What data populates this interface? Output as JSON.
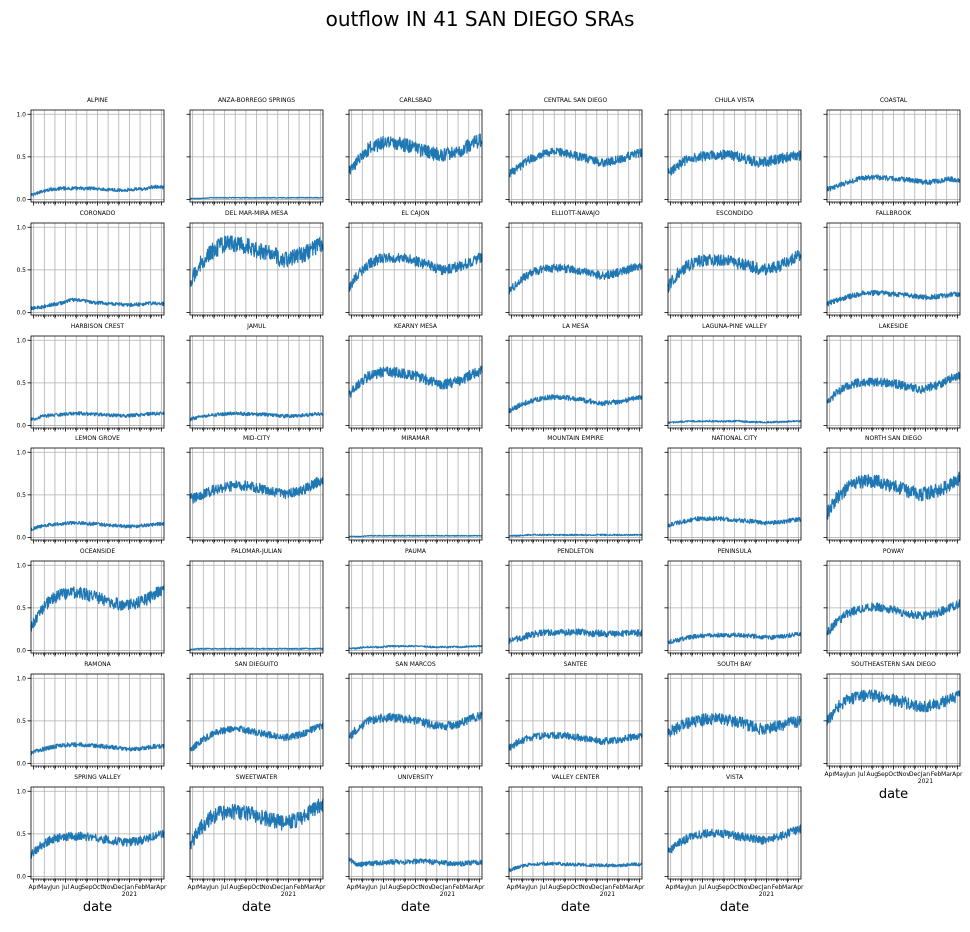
{
  "title": "outflow IN 41 SAN DIEGO SRAs",
  "chart_data": {
    "type": "line",
    "layout": {
      "rows": 7,
      "cols": 6
    },
    "shared_axes": true,
    "series_color": "#1f77b4",
    "grid": true,
    "xlabel": "date",
    "ylim": [
      -0.03,
      1.05
    ],
    "y_ticks": [
      0.0,
      0.5,
      1.0
    ],
    "y_tick_labels": [
      "0.0",
      "0.5",
      "1.0"
    ],
    "x_range": [
      "2020-04-01",
      "2021-04-15"
    ],
    "x_tick_labels": [
      "Apr",
      "May",
      "Jun",
      "Jul",
      "Aug",
      "Sep",
      "Oct",
      "Nov",
      "Dec",
      "Jan",
      "Feb",
      "Mar",
      "Apr"
    ],
    "x_year_label": "2021",
    "x_profile": [
      0,
      0.07,
      0.15,
      0.23,
      0.3,
      0.38,
      0.46,
      0.54,
      0.62,
      0.7,
      0.77,
      0.85,
      0.92,
      1.0
    ],
    "panels": [
      {
        "name": "ALPINE",
        "profile": [
          0.05,
          0.09,
          0.12,
          0.13,
          0.13,
          0.13,
          0.13,
          0.12,
          0.11,
          0.11,
          0.12,
          0.12,
          0.15,
          0.14
        ],
        "noise": 0.02
      },
      {
        "name": "ANZA-BORREGO SPRINGS",
        "profile": [
          0.01,
          0.01,
          0.02,
          0.02,
          0.02,
          0.02,
          0.02,
          0.02,
          0.02,
          0.02,
          0.02,
          0.02,
          0.02,
          0.02
        ],
        "noise": 0.005
      },
      {
        "name": "CARLSBAD",
        "profile": [
          0.3,
          0.48,
          0.6,
          0.65,
          0.67,
          0.66,
          0.62,
          0.58,
          0.54,
          0.52,
          0.55,
          0.58,
          0.65,
          0.7
        ],
        "noise": 0.08
      },
      {
        "name": "CENTRAL SAN DIEGO",
        "profile": [
          0.3,
          0.37,
          0.47,
          0.52,
          0.55,
          0.56,
          0.53,
          0.5,
          0.46,
          0.43,
          0.45,
          0.48,
          0.52,
          0.55
        ],
        "noise": 0.05
      },
      {
        "name": "CHULA VISTA",
        "profile": [
          0.3,
          0.4,
          0.47,
          0.5,
          0.52,
          0.53,
          0.52,
          0.5,
          0.46,
          0.43,
          0.45,
          0.48,
          0.5,
          0.52
        ],
        "noise": 0.06
      },
      {
        "name": "COASTAL",
        "profile": [
          0.12,
          0.15,
          0.2,
          0.24,
          0.26,
          0.26,
          0.25,
          0.24,
          0.23,
          0.21,
          0.2,
          0.22,
          0.24,
          0.22
        ],
        "noise": 0.03
      },
      {
        "name": "CORONADO",
        "profile": [
          0.05,
          0.06,
          0.09,
          0.11,
          0.15,
          0.14,
          0.12,
          0.11,
          0.1,
          0.09,
          0.09,
          0.1,
          0.11,
          0.1
        ],
        "noise": 0.02
      },
      {
        "name": "DEL MAR-MIRA MESA",
        "profile": [
          0.35,
          0.55,
          0.7,
          0.78,
          0.82,
          0.8,
          0.76,
          0.72,
          0.68,
          0.62,
          0.65,
          0.68,
          0.75,
          0.8
        ],
        "noise": 0.1
      },
      {
        "name": "EL CAJON",
        "profile": [
          0.3,
          0.45,
          0.57,
          0.63,
          0.65,
          0.64,
          0.62,
          0.58,
          0.54,
          0.5,
          0.52,
          0.55,
          0.6,
          0.65
        ],
        "noise": 0.06
      },
      {
        "name": "ELLIOTT-NAVAJO",
        "profile": [
          0.25,
          0.36,
          0.45,
          0.5,
          0.52,
          0.52,
          0.51,
          0.49,
          0.46,
          0.43,
          0.45,
          0.48,
          0.52,
          0.55
        ],
        "noise": 0.05
      },
      {
        "name": "ESCONDIDO",
        "profile": [
          0.3,
          0.45,
          0.55,
          0.6,
          0.62,
          0.61,
          0.6,
          0.57,
          0.54,
          0.5,
          0.52,
          0.55,
          0.62,
          0.68
        ],
        "noise": 0.07
      },
      {
        "name": "FALLBROOK",
        "profile": [
          0.1,
          0.14,
          0.18,
          0.21,
          0.23,
          0.23,
          0.22,
          0.21,
          0.2,
          0.18,
          0.18,
          0.19,
          0.21,
          0.22
        ],
        "noise": 0.03
      },
      {
        "name": "HARBISON CREST",
        "profile": [
          0.07,
          0.1,
          0.12,
          0.13,
          0.14,
          0.14,
          0.13,
          0.13,
          0.12,
          0.11,
          0.12,
          0.13,
          0.14,
          0.14
        ],
        "noise": 0.02
      },
      {
        "name": "JAMUL",
        "profile": [
          0.07,
          0.1,
          0.12,
          0.13,
          0.14,
          0.14,
          0.13,
          0.13,
          0.12,
          0.11,
          0.11,
          0.12,
          0.13,
          0.14
        ],
        "noise": 0.02
      },
      {
        "name": "KEARNY MESA",
        "profile": [
          0.35,
          0.48,
          0.58,
          0.62,
          0.63,
          0.62,
          0.6,
          0.56,
          0.52,
          0.48,
          0.5,
          0.53,
          0.6,
          0.64
        ],
        "noise": 0.06
      },
      {
        "name": "LA MESA",
        "profile": [
          0.17,
          0.23,
          0.28,
          0.31,
          0.33,
          0.33,
          0.32,
          0.3,
          0.28,
          0.26,
          0.27,
          0.28,
          0.31,
          0.33
        ],
        "noise": 0.03
      },
      {
        "name": "LAGUNA-PINE VALLEY",
        "profile": [
          0.03,
          0.04,
          0.05,
          0.05,
          0.05,
          0.05,
          0.05,
          0.05,
          0.04,
          0.04,
          0.04,
          0.04,
          0.05,
          0.05
        ],
        "noise": 0.01
      },
      {
        "name": "LAKESIDE",
        "profile": [
          0.28,
          0.38,
          0.46,
          0.5,
          0.51,
          0.51,
          0.5,
          0.48,
          0.45,
          0.42,
          0.45,
          0.48,
          0.55,
          0.58
        ],
        "noise": 0.05
      },
      {
        "name": "LEMON GROVE",
        "profile": [
          0.1,
          0.13,
          0.15,
          0.16,
          0.17,
          0.17,
          0.16,
          0.15,
          0.14,
          0.13,
          0.13,
          0.14,
          0.15,
          0.16
        ],
        "noise": 0.02
      },
      {
        "name": "MID-CITY",
        "profile": [
          0.45,
          0.48,
          0.54,
          0.58,
          0.6,
          0.61,
          0.6,
          0.57,
          0.54,
          0.5,
          0.52,
          0.55,
          0.62,
          0.68
        ],
        "noise": 0.06
      },
      {
        "name": "MIRAMAR",
        "profile": [
          0.01,
          0.01,
          0.02,
          0.02,
          0.02,
          0.02,
          0.02,
          0.02,
          0.02,
          0.02,
          0.02,
          0.02,
          0.02,
          0.02
        ],
        "noise": 0.005
      },
      {
        "name": "MOUNTAIN EMPIRE",
        "profile": [
          0.02,
          0.02,
          0.03,
          0.03,
          0.03,
          0.03,
          0.03,
          0.03,
          0.03,
          0.03,
          0.03,
          0.03,
          0.03,
          0.03
        ],
        "noise": 0.008
      },
      {
        "name": "NATIONAL CITY",
        "profile": [
          0.14,
          0.17,
          0.2,
          0.22,
          0.22,
          0.22,
          0.21,
          0.2,
          0.19,
          0.17,
          0.17,
          0.18,
          0.2,
          0.21
        ],
        "noise": 0.025
      },
      {
        "name": "NORTH SAN DIEGO",
        "profile": [
          0.28,
          0.45,
          0.58,
          0.64,
          0.67,
          0.66,
          0.62,
          0.58,
          0.54,
          0.5,
          0.53,
          0.56,
          0.62,
          0.7
        ],
        "noise": 0.08
      },
      {
        "name": "OCEANSIDE",
        "profile": [
          0.28,
          0.45,
          0.6,
          0.66,
          0.68,
          0.67,
          0.64,
          0.6,
          0.56,
          0.53,
          0.55,
          0.58,
          0.65,
          0.72
        ],
        "noise": 0.07
      },
      {
        "name": "PALOMAR-JULIAN",
        "profile": [
          0.01,
          0.02,
          0.02,
          0.02,
          0.02,
          0.02,
          0.02,
          0.02,
          0.02,
          0.02,
          0.02,
          0.02,
          0.02,
          0.02
        ],
        "noise": 0.007
      },
      {
        "name": "PAUMA",
        "profile": [
          0.02,
          0.03,
          0.04,
          0.04,
          0.05,
          0.05,
          0.05,
          0.05,
          0.04,
          0.04,
          0.04,
          0.04,
          0.05,
          0.05
        ],
        "noise": 0.01
      },
      {
        "name": "PENDLETON",
        "profile": [
          0.1,
          0.14,
          0.18,
          0.2,
          0.21,
          0.21,
          0.21,
          0.22,
          0.2,
          0.2,
          0.19,
          0.2,
          0.21,
          0.2
        ],
        "noise": 0.04
      },
      {
        "name": "PENINSULA",
        "profile": [
          0.1,
          0.12,
          0.15,
          0.17,
          0.18,
          0.18,
          0.18,
          0.18,
          0.17,
          0.16,
          0.15,
          0.16,
          0.18,
          0.2
        ],
        "noise": 0.025
      },
      {
        "name": "POWAY",
        "profile": [
          0.2,
          0.33,
          0.43,
          0.48,
          0.51,
          0.51,
          0.49,
          0.46,
          0.43,
          0.4,
          0.42,
          0.45,
          0.5,
          0.55
        ],
        "noise": 0.05
      },
      {
        "name": "RAMONA",
        "profile": [
          0.12,
          0.16,
          0.19,
          0.21,
          0.22,
          0.22,
          0.21,
          0.2,
          0.19,
          0.17,
          0.17,
          0.18,
          0.2,
          0.2
        ],
        "noise": 0.025
      },
      {
        "name": "SAN DIEGUITO",
        "profile": [
          0.15,
          0.25,
          0.33,
          0.38,
          0.4,
          0.4,
          0.38,
          0.35,
          0.33,
          0.3,
          0.32,
          0.35,
          0.4,
          0.45
        ],
        "noise": 0.04
      },
      {
        "name": "SAN MARCOS",
        "profile": [
          0.3,
          0.42,
          0.5,
          0.53,
          0.54,
          0.53,
          0.52,
          0.49,
          0.46,
          0.43,
          0.45,
          0.48,
          0.53,
          0.56
        ],
        "noise": 0.05
      },
      {
        "name": "SANTEE",
        "profile": [
          0.18,
          0.25,
          0.3,
          0.32,
          0.33,
          0.33,
          0.32,
          0.3,
          0.28,
          0.26,
          0.27,
          0.28,
          0.31,
          0.33
        ],
        "noise": 0.04
      },
      {
        "name": "SOUTH BAY",
        "profile": [
          0.35,
          0.42,
          0.48,
          0.5,
          0.52,
          0.52,
          0.51,
          0.48,
          0.44,
          0.4,
          0.42,
          0.44,
          0.48,
          0.5
        ],
        "noise": 0.07
      },
      {
        "name": "SOUTHEASTERN SAN DIEGO",
        "profile": [
          0.5,
          0.65,
          0.74,
          0.78,
          0.8,
          0.79,
          0.76,
          0.73,
          0.7,
          0.66,
          0.68,
          0.7,
          0.76,
          0.8
        ],
        "noise": 0.07
      },
      {
        "name": "SPRING VALLEY",
        "profile": [
          0.25,
          0.36,
          0.43,
          0.46,
          0.47,
          0.47,
          0.46,
          0.44,
          0.42,
          0.4,
          0.41,
          0.43,
          0.47,
          0.5
        ],
        "noise": 0.05
      },
      {
        "name": "SWEETWATER",
        "profile": [
          0.35,
          0.55,
          0.68,
          0.74,
          0.76,
          0.75,
          0.73,
          0.7,
          0.66,
          0.62,
          0.65,
          0.68,
          0.78,
          0.85
        ],
        "noise": 0.09
      },
      {
        "name": "UNIVERSITY",
        "profile": [
          0.2,
          0.14,
          0.15,
          0.16,
          0.17,
          0.17,
          0.17,
          0.18,
          0.17,
          0.16,
          0.15,
          0.15,
          0.16,
          0.17
        ],
        "noise": 0.03
      },
      {
        "name": "VALLEY CENTER",
        "profile": [
          0.07,
          0.11,
          0.14,
          0.15,
          0.15,
          0.15,
          0.14,
          0.14,
          0.13,
          0.13,
          0.13,
          0.13,
          0.14,
          0.14
        ],
        "noise": 0.02
      },
      {
        "name": "VISTA",
        "profile": [
          0.28,
          0.38,
          0.45,
          0.49,
          0.51,
          0.51,
          0.49,
          0.47,
          0.45,
          0.42,
          0.44,
          0.47,
          0.52,
          0.56
        ],
        "noise": 0.05
      }
    ]
  }
}
